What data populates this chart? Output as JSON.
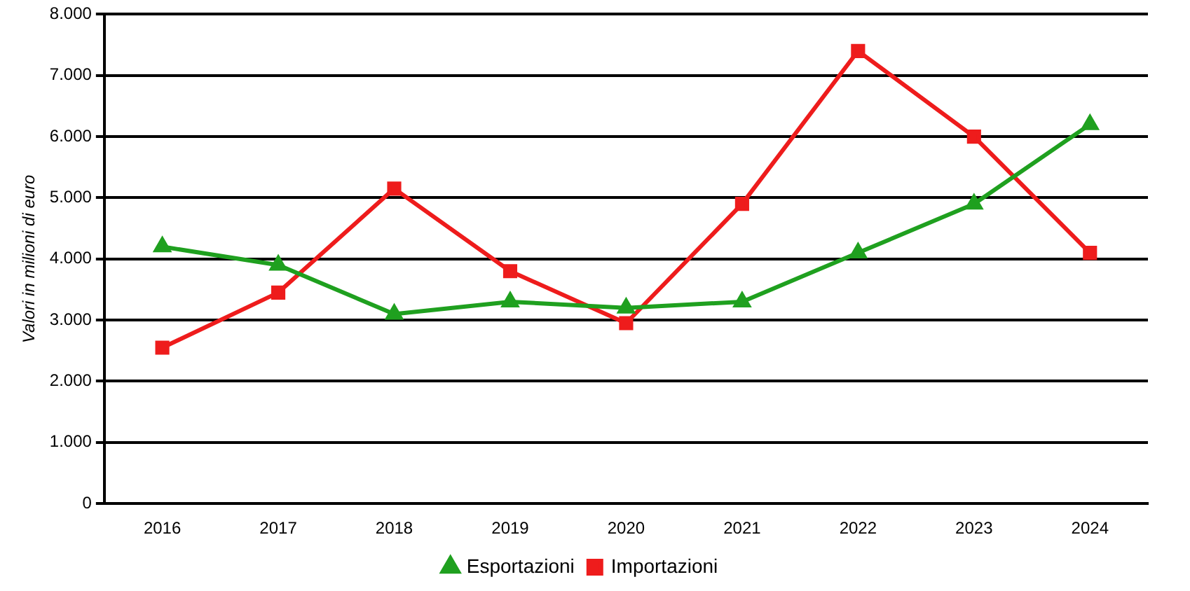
{
  "chart_data": {
    "type": "line",
    "ylabel": "Valori in milioni di euro",
    "categories": [
      "2016",
      "2017",
      "2018",
      "2019",
      "2020",
      "2021",
      "2022",
      "2023",
      "2024"
    ],
    "series": [
      {
        "name": "Esportazioni",
        "color": "#1fa01f",
        "marker": "triangle",
        "values": [
          4200,
          3900,
          3100,
          3300,
          3200,
          3300,
          4100,
          4900,
          6200
        ]
      },
      {
        "name": "Importazioni",
        "color": "#ee1c1c",
        "marker": "square",
        "values": [
          2550,
          3450,
          5150,
          3800,
          2950,
          4900,
          7400,
          6000,
          4100
        ]
      }
    ],
    "ylim": [
      0,
      8000
    ],
    "yticks": [
      0,
      {
        "value": 1000,
        "label": "1.000"
      },
      {
        "value": 2000,
        "label": "2.000"
      },
      {
        "value": 3000,
        "label": "3.000"
      },
      {
        "value": 4000,
        "label": "4.000"
      },
      {
        "value": 5000,
        "label": "5.000"
      },
      {
        "value": 6000,
        "label": "6.000"
      },
      {
        "value": 7000,
        "label": "7.000"
      },
      {
        "value": 8000,
        "label": "8.000"
      }
    ],
    "grid": "y",
    "legend": "bottom",
    "line_style": "solid"
  }
}
